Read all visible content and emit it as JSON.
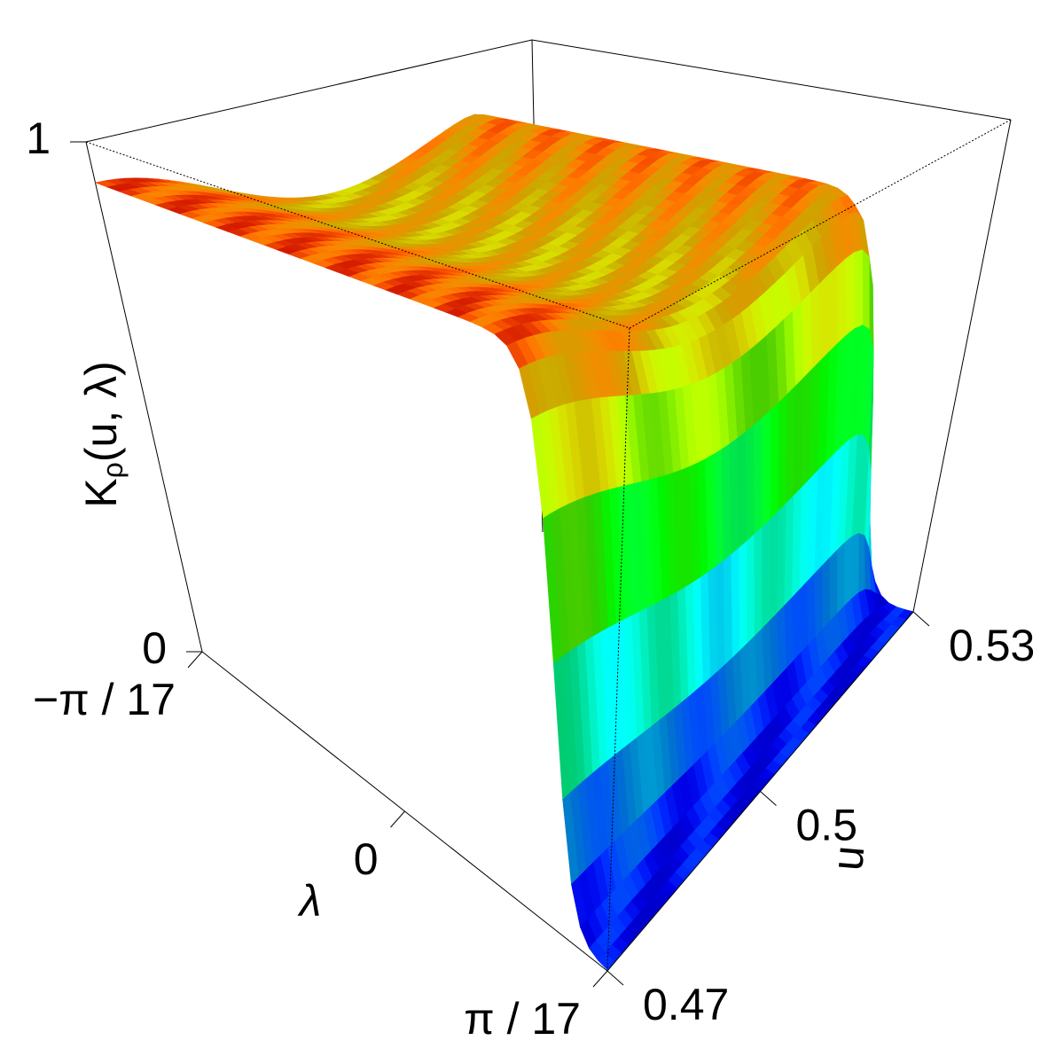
{
  "chart_data": {
    "type": "surface",
    "zlabel": {
      "base": "K",
      "sub": "ρ",
      "rest": "(u, λ)"
    },
    "xlabel": "λ",
    "ylabel": "u",
    "xlim": [
      -0.18479956785822313,
      0.18479956785822313
    ],
    "xticks": [
      {
        "value": -0.18479956785822313,
        "label": "−π / 17"
      },
      0,
      {
        "value": 0.18479956785822313,
        "label": "π / 17"
      }
    ],
    "ylim": [
      0.47,
      0.53
    ],
    "yticks": [
      0.47,
      0.5,
      0.53
    ],
    "zlim": [
      0,
      1
    ],
    "zticks": [
      0,
      1
    ]
  }
}
